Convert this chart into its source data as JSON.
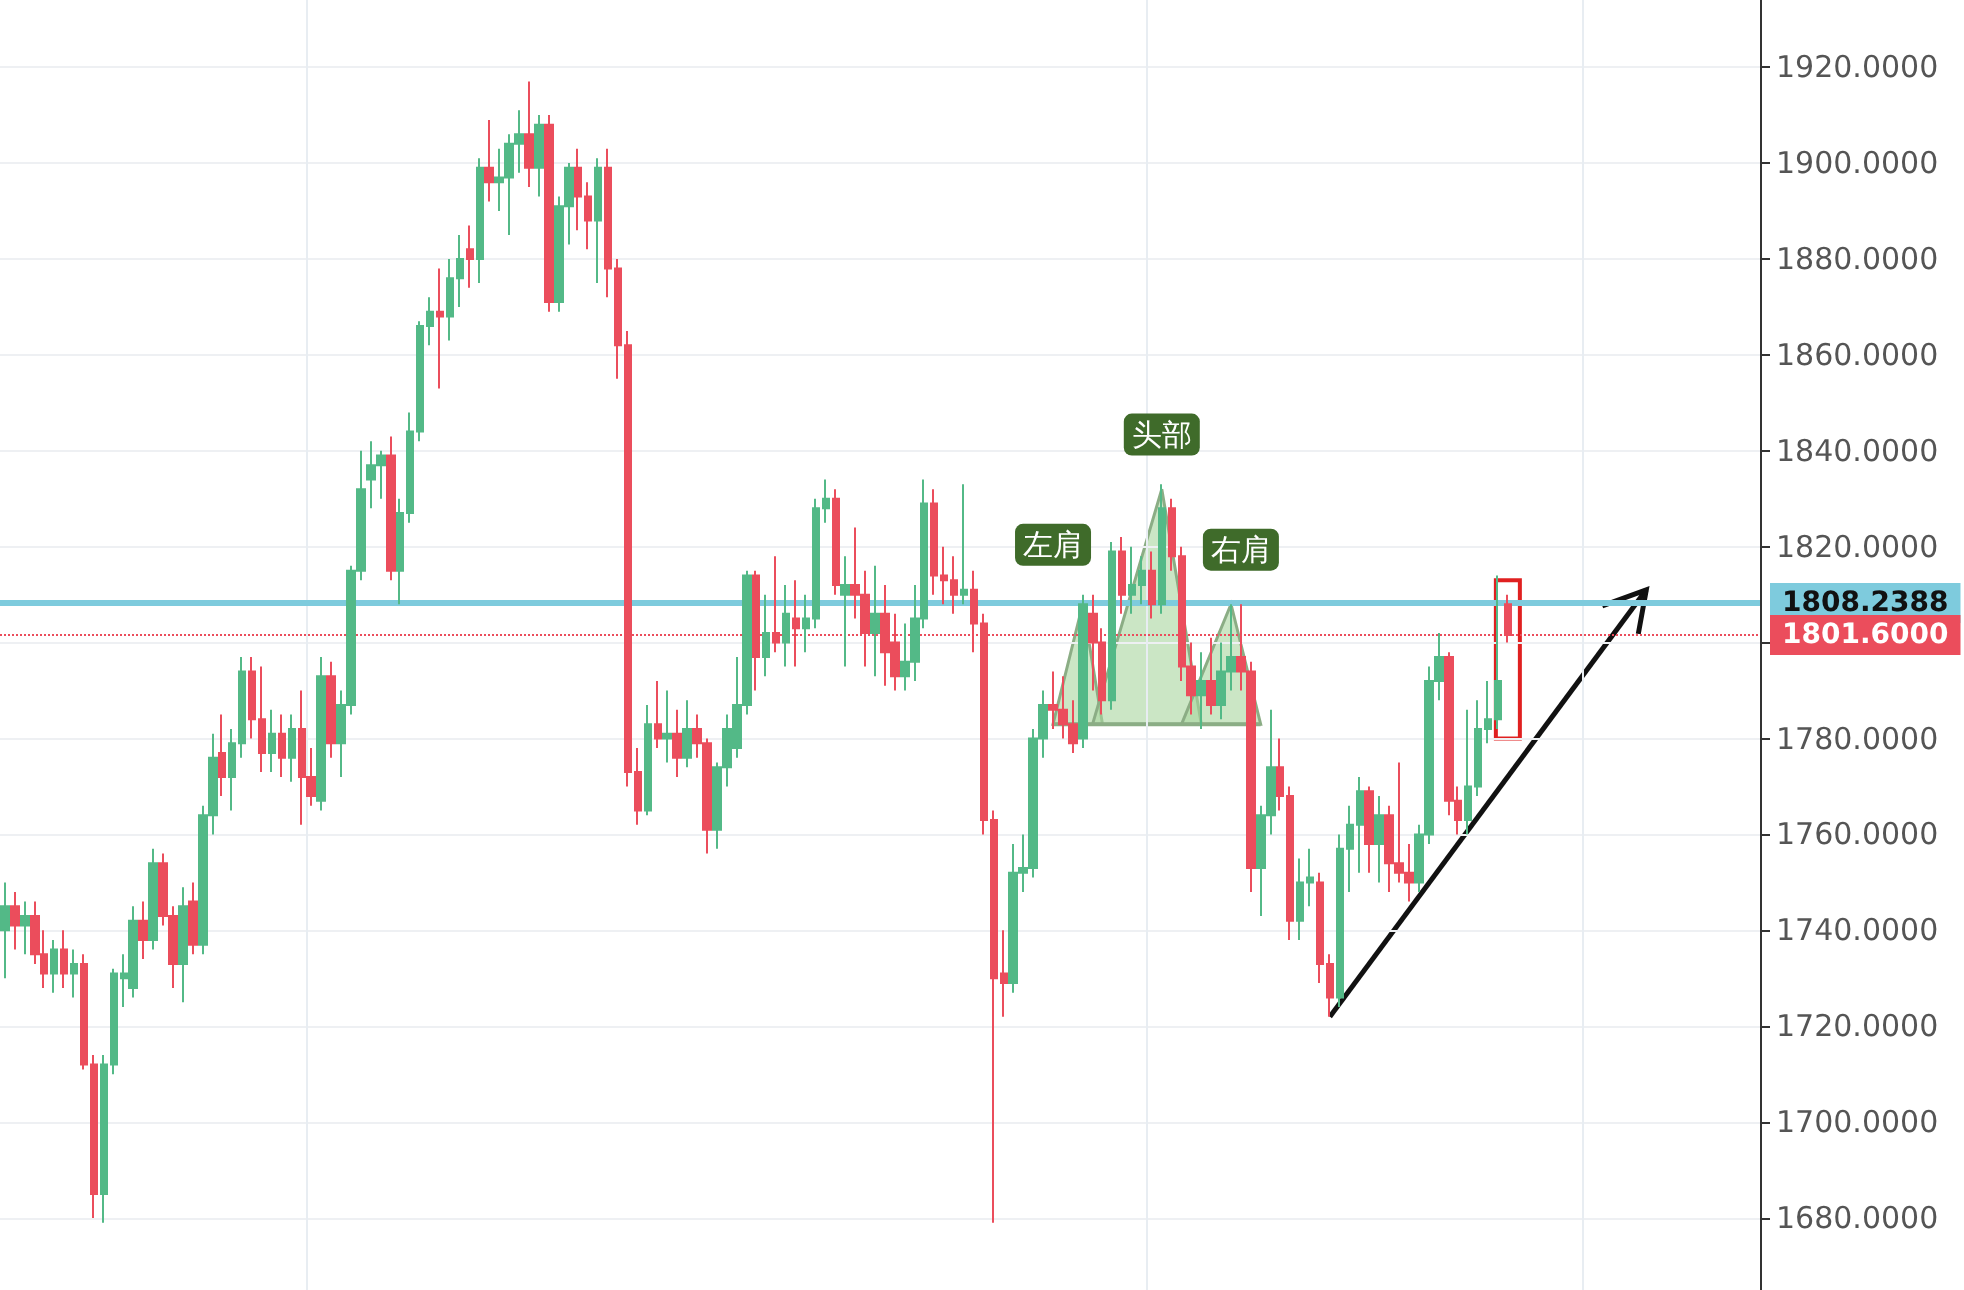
{
  "chart_data": {
    "type": "candlestick",
    "categories": [
      null,
      null,
      null,
      null,
      null,
      null,
      null,
      null,
      null,
      null,
      null,
      null,
      null,
      null,
      null,
      null,
      null,
      null,
      null,
      null,
      null,
      null,
      null,
      null,
      null,
      null,
      null,
      null,
      null,
      null,
      null,
      null,
      null,
      null,
      null,
      null,
      null,
      null,
      null,
      null,
      null,
      null,
      null,
      null,
      null,
      null,
      null,
      null,
      null,
      null,
      null,
      null,
      null,
      null,
      null,
      null,
      null,
      null,
      null,
      null,
      null,
      null,
      null,
      null,
      null,
      null,
      null,
      null,
      null,
      null,
      null,
      null,
      null,
      null,
      null,
      null,
      null,
      null,
      null,
      null,
      null,
      null,
      null,
      null,
      null,
      null,
      null,
      null,
      null,
      null,
      null,
      null,
      null,
      null,
      null,
      null,
      null,
      null,
      null,
      null,
      null,
      null,
      null,
      null,
      null,
      null,
      null,
      null,
      null,
      null,
      null,
      null,
      null,
      null,
      null,
      null,
      null,
      null,
      null,
      null,
      null,
      null,
      null,
      null,
      null,
      null,
      null,
      null,
      null,
      null,
      null,
      null,
      null,
      null,
      null,
      null,
      null,
      null,
      null,
      null,
      null,
      null,
      null,
      null,
      null,
      null,
      null,
      null,
      null,
      null,
      null,
      null,
      null,
      null,
      null,
      null,
      null,
      null,
      null,
      null,
      null,
      null,
      null,
      null,
      null,
      null,
      null,
      null,
      null,
      null,
      null,
      null,
      null,
      null,
      null,
      null,
      null,
      null
    ],
    "ohlc": [
      [
        1740,
        1750,
        1730,
        1745
      ],
      [
        1745,
        1748,
        1736,
        1741
      ],
      [
        1741,
        1746,
        1735,
        1743
      ],
      [
        1743,
        1746,
        1733,
        1735
      ],
      [
        1735,
        1740,
        1728,
        1731
      ],
      [
        1731,
        1738,
        1727,
        1736
      ],
      [
        1736,
        1740,
        1728,
        1731
      ],
      [
        1731,
        1736,
        1726,
        1733
      ],
      [
        1733,
        1735,
        1711,
        1712
      ],
      [
        1712,
        1714,
        1680,
        1685
      ],
      [
        1685,
        1714,
        1679,
        1712
      ],
      [
        1712,
        1732,
        1710,
        1731
      ],
      [
        1730,
        1735,
        1724,
        1731
      ],
      [
        1728,
        1745,
        1726,
        1742
      ],
      [
        1742,
        1746,
        1734,
        1738
      ],
      [
        1738,
        1757,
        1736,
        1754
      ],
      [
        1754,
        1756,
        1741,
        1743
      ],
      [
        1743,
        1745,
        1728,
        1733
      ],
      [
        1733,
        1749,
        1725,
        1745
      ],
      [
        1746,
        1750,
        1735,
        1737
      ],
      [
        1737,
        1766,
        1735,
        1764
      ],
      [
        1764,
        1781,
        1760,
        1776
      ],
      [
        1777,
        1785,
        1768,
        1772
      ],
      [
        1772,
        1782,
        1765,
        1779
      ],
      [
        1779,
        1797,
        1776,
        1794
      ],
      [
        1794,
        1797,
        1780,
        1784
      ],
      [
        1784,
        1795,
        1773,
        1777
      ],
      [
        1777,
        1786,
        1773,
        1781
      ],
      [
        1781,
        1785,
        1772,
        1776
      ],
      [
        1776,
        1785,
        1771,
        1782
      ],
      [
        1782,
        1790,
        1762,
        1772
      ],
      [
        1772,
        1778,
        1766,
        1768
      ],
      [
        1767,
        1797,
        1765,
        1793
      ],
      [
        1793,
        1796,
        1776,
        1779
      ],
      [
        1779,
        1790,
        1772,
        1787
      ],
      [
        1787,
        1816,
        1785,
        1815
      ],
      [
        1815,
        1840,
        1813,
        1832
      ],
      [
        1834,
        1842,
        1828,
        1837
      ],
      [
        1837,
        1840,
        1830,
        1839
      ],
      [
        1839,
        1843,
        1813,
        1815
      ],
      [
        1815,
        1830,
        1808,
        1827
      ],
      [
        1827,
        1848,
        1825,
        1844
      ],
      [
        1844,
        1867,
        1842,
        1866
      ],
      [
        1866,
        1872,
        1862,
        1869
      ],
      [
        1869,
        1878,
        1853,
        1868
      ],
      [
        1868,
        1880,
        1863,
        1876
      ],
      [
        1876,
        1885,
        1870,
        1880
      ],
      [
        1882,
        1887,
        1874,
        1880
      ],
      [
        1880,
        1901,
        1875,
        1899
      ],
      [
        1899,
        1909,
        1892,
        1896
      ],
      [
        1896,
        1903,
        1890,
        1897
      ],
      [
        1897,
        1906,
        1885,
        1904
      ],
      [
        1904,
        1911,
        1898,
        1906
      ],
      [
        1906,
        1917,
        1895,
        1899
      ],
      [
        1899,
        1910,
        1893,
        1908
      ],
      [
        1908,
        1910,
        1869,
        1871
      ],
      [
        1871,
        1893,
        1869,
        1891
      ],
      [
        1891,
        1900,
        1883,
        1899
      ],
      [
        1899,
        1903,
        1886,
        1893
      ],
      [
        1893,
        1896,
        1882,
        1888
      ],
      [
        1888,
        1901,
        1875,
        1899
      ],
      [
        1899,
        1903,
        1872,
        1878
      ],
      [
        1878,
        1880,
        1855,
        1862
      ],
      [
        1862,
        1865,
        1770,
        1773
      ],
      [
        1773,
        1778,
        1762,
        1765
      ],
      [
        1765,
        1787,
        1764,
        1783
      ],
      [
        1783,
        1792,
        1778,
        1780
      ],
      [
        1780,
        1790,
        1775,
        1781
      ],
      [
        1781,
        1786,
        1772,
        1776
      ],
      [
        1776,
        1788,
        1774,
        1782
      ],
      [
        1782,
        1785,
        1776,
        1779
      ],
      [
        1779,
        1780,
        1756,
        1761
      ],
      [
        1761,
        1775,
        1757,
        1774
      ],
      [
        1774,
        1785,
        1770,
        1782
      ],
      [
        1778,
        1797,
        1776,
        1787
      ],
      [
        1787,
        1815,
        1785,
        1814
      ],
      [
        1814,
        1815,
        1790,
        1797
      ],
      [
        1797,
        1810,
        1793,
        1802
      ],
      [
        1802,
        1818,
        1798,
        1800
      ],
      [
        1800,
        1812,
        1795,
        1806
      ],
      [
        1805,
        1813,
        1795,
        1803
      ],
      [
        1803,
        1810,
        1798,
        1805
      ],
      [
        1805,
        1830,
        1803,
        1828
      ],
      [
        1828,
        1834,
        1825,
        1830
      ],
      [
        1830,
        1832,
        1810,
        1812
      ],
      [
        1810,
        1818,
        1795,
        1812
      ],
      [
        1812,
        1824,
        1805,
        1810
      ],
      [
        1810,
        1815,
        1795,
        1802
      ],
      [
        1802,
        1816,
        1793,
        1806
      ],
      [
        1806,
        1812,
        1791,
        1798
      ],
      [
        1800,
        1806,
        1790,
        1793
      ],
      [
        1793,
        1804,
        1790,
        1796
      ],
      [
        1796,
        1812,
        1792,
        1805
      ],
      [
        1805,
        1834,
        1803,
        1829
      ],
      [
        1829,
        1832,
        1810,
        1814
      ],
      [
        1814,
        1820,
        1808,
        1813
      ],
      [
        1813,
        1818,
        1806,
        1810
      ],
      [
        1810,
        1833,
        1808,
        1811
      ],
      [
        1811,
        1815,
        1798,
        1804
      ],
      [
        1804,
        1806,
        1760,
        1763
      ],
      [
        1763,
        1765,
        1679,
        1730
      ],
      [
        1731,
        1740,
        1722,
        1729
      ],
      [
        1729,
        1758,
        1727,
        1752
      ],
      [
        1752,
        1760,
        1748,
        1753
      ],
      [
        1753,
        1782,
        1751,
        1780
      ],
      [
        1780,
        1790,
        1776,
        1787
      ],
      [
        1787,
        1794,
        1782,
        1786
      ],
      [
        1786,
        1793,
        1780,
        1783
      ],
      [
        1783,
        1788,
        1777,
        1779
      ],
      [
        1780,
        1810,
        1778,
        1808
      ],
      [
        1806,
        1810,
        1790,
        1800
      ],
      [
        1800,
        1803,
        1785,
        1788
      ],
      [
        1788,
        1821,
        1786,
        1819
      ],
      [
        1819,
        1822,
        1806,
        1810
      ],
      [
        1810,
        1820,
        1806,
        1812
      ],
      [
        1812,
        1818,
        1808,
        1815
      ],
      [
        1815,
        1819,
        1805,
        1808
      ],
      [
        1808,
        1833,
        1806,
        1828
      ],
      [
        1828,
        1830,
        1815,
        1818
      ],
      [
        1818,
        1820,
        1792,
        1795
      ],
      [
        1795,
        1800,
        1785,
        1789
      ],
      [
        1789,
        1798,
        1782,
        1792
      ],
      [
        1792,
        1801,
        1785,
        1787
      ],
      [
        1787,
        1800,
        1784,
        1794
      ],
      [
        1794,
        1808,
        1790,
        1797
      ],
      [
        1797,
        1808,
        1790,
        1794
      ],
      [
        1794,
        1796,
        1748,
        1753
      ],
      [
        1753,
        1766,
        1743,
        1764
      ],
      [
        1764,
        1786,
        1760,
        1774
      ],
      [
        1774,
        1780,
        1765,
        1768
      ],
      [
        1768,
        1770,
        1738,
        1742
      ],
      [
        1742,
        1755,
        1738,
        1750
      ],
      [
        1750,
        1757,
        1745,
        1751
      ],
      [
        1750,
        1752,
        1729,
        1733
      ],
      [
        1733,
        1735,
        1722,
        1726
      ],
      [
        1726,
        1760,
        1724,
        1757
      ],
      [
        1757,
        1766,
        1748,
        1762
      ],
      [
        1762,
        1772,
        1752,
        1769
      ],
      [
        1769,
        1770,
        1752,
        1758
      ],
      [
        1758,
        1768,
        1750,
        1764
      ],
      [
        1764,
        1766,
        1748,
        1754
      ],
      [
        1754,
        1775,
        1750,
        1752
      ],
      [
        1752,
        1758,
        1746,
        1750
      ],
      [
        1750,
        1762,
        1748,
        1760
      ],
      [
        1760,
        1795,
        1758,
        1792
      ],
      [
        1792,
        1802,
        1788,
        1797
      ],
      [
        1797,
        1798,
        1764,
        1767
      ],
      [
        1767,
        1770,
        1760,
        1763
      ],
      [
        1763,
        1786,
        1760,
        1770
      ],
      [
        1770,
        1788,
        1768,
        1782
      ],
      [
        1782,
        1792,
        1779,
        1784
      ],
      [
        1784,
        1814,
        1782,
        1792
      ],
      [
        1808,
        1810,
        1800,
        1801.6
      ],
      null,
      null,
      null,
      null,
      null,
      null,
      null,
      null,
      null,
      null,
      null,
      null,
      null,
      null,
      null,
      null,
      null,
      null,
      null,
      null,
      null,
      null,
      null,
      null,
      null
    ],
    "ylim": [
      1665,
      1934
    ],
    "yticks": [
      {
        "value": 1680,
        "label": "1680.0000"
      },
      {
        "value": 1700,
        "label": "1700.0000"
      },
      {
        "value": 1720,
        "label": "1720.0000"
      },
      {
        "value": 1740,
        "label": "1740.0000"
      },
      {
        "value": 1760,
        "label": "1760.0000"
      },
      {
        "value": 1780,
        "label": "1780.0000"
      },
      {
        "value": 1800,
        "label": null
      },
      {
        "value": 1820,
        "label": "1820.0000"
      },
      {
        "value": 1840,
        "label": "1840.0000"
      },
      {
        "value": 1860,
        "label": "1860.0000"
      },
      {
        "value": 1880,
        "label": "1880.0000"
      },
      {
        "value": 1900,
        "label": "1900.0000"
      },
      {
        "value": 1920,
        "label": "1920.0000"
      }
    ],
    "ref_lines": [
      {
        "axis": "y",
        "value": 1808.2388,
        "label": "1808.2388",
        "color": "#7ecbdd",
        "line_style": "solid"
      },
      {
        "axis": "y",
        "value": 1801.6,
        "label": "1801.6000",
        "color": "#eb4d5c",
        "line_style": "dotted"
      }
    ],
    "annotations": [
      "左肩",
      "头部",
      "右肩"
    ],
    "grid": true,
    "tick_labels": "y"
  }
}
